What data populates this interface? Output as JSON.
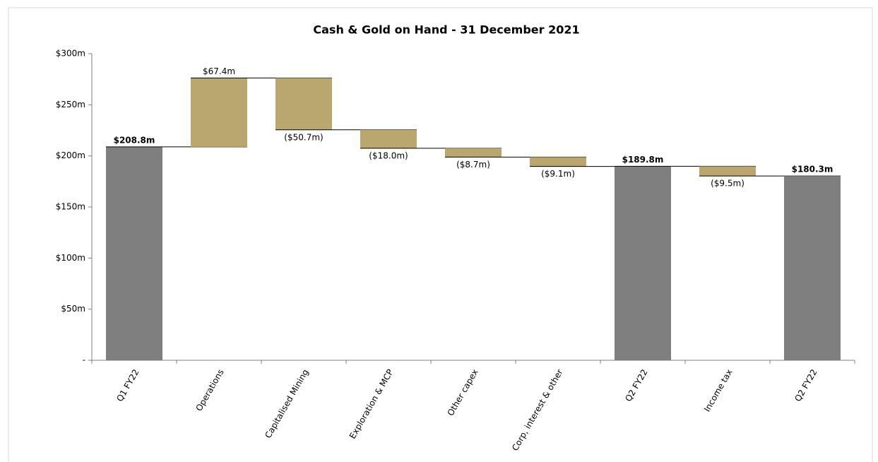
{
  "chart_data": {
    "type": "waterfall",
    "title": "Cash & Gold on Hand - 31 December 2021",
    "categories": [
      "Q1 FY22",
      "Operations",
      "Capitalised Mining",
      "Exploration & MCP",
      "Other capex",
      "Corp, interest & other",
      "Q2 FY22",
      "Income tax",
      "Q2 FY22"
    ],
    "values": [
      208.8,
      67.4,
      -50.7,
      -18.0,
      -8.7,
      -9.1,
      189.8,
      -9.5,
      180.3
    ],
    "value_labels": [
      "$208.8m",
      "$67.4m",
      "($50.7m)",
      "($18.0m)",
      "($8.7m)",
      "($9.1m)",
      "$189.8m",
      "($9.5m)",
      "$180.3m"
    ],
    "kinds": [
      "total",
      "change",
      "change",
      "change",
      "change",
      "change",
      "total",
      "change",
      "total"
    ],
    "total_color": "#7f7f7f",
    "change_color": "#b9a76f",
    "ylim": [
      0,
      300
    ],
    "yticks": [
      {
        "value": 0,
        "label": "-"
      },
      {
        "value": 50,
        "label": "$50m"
      },
      {
        "value": 100,
        "label": "$100m"
      },
      {
        "value": 150,
        "label": "$150m"
      },
      {
        "value": 200,
        "label": "$200m"
      },
      {
        "value": 250,
        "label": "$250m"
      },
      {
        "value": 300,
        "label": "$300m"
      }
    ],
    "grid": false
  }
}
